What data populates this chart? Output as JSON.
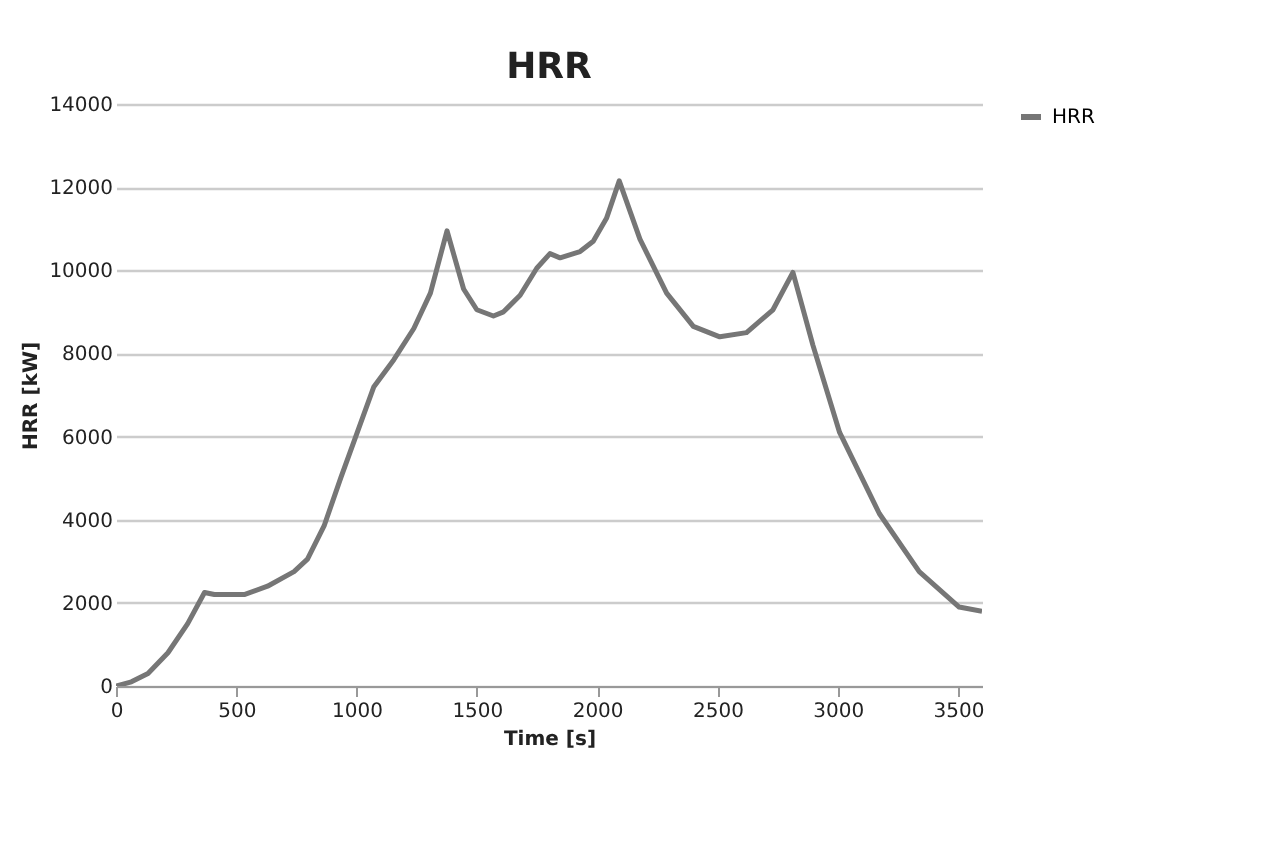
{
  "chart_data": {
    "type": "line",
    "title": "HRR",
    "xlabel": "Time [s]",
    "ylabel": "HRR [kW]",
    "x": [
      0,
      64,
      133,
      216,
      298,
      368,
      409,
      533,
      630,
      740,
      796,
      865,
      934,
      1003,
      1072,
      1155,
      1238,
      1307,
      1376,
      1445,
      1500,
      1569,
      1611,
      1680,
      1749,
      1804,
      1846,
      1929,
      1984,
      2039,
      2092,
      2178,
      2289,
      2400,
      2510,
      2621,
      2731,
      2814,
      2897,
      3008,
      3173,
      3339,
      3505,
      3600
    ],
    "series": [
      {
        "name": "HRR",
        "color": "#767676",
        "values": [
          0,
          100,
          300,
          800,
          1500,
          2250,
          2200,
          2200,
          2400,
          2750,
          3050,
          3850,
          5000,
          6100,
          7200,
          7850,
          8600,
          9450,
          10950,
          9550,
          9050,
          8900,
          9000,
          9400,
          10050,
          10400,
          10300,
          10450,
          10700,
          11250,
          12150,
          10750,
          9450,
          8650,
          8400,
          8500,
          9050,
          9950,
          8200,
          6100,
          4150,
          2750,
          1900,
          1800
        ]
      }
    ],
    "xlim": [
      0,
      3600
    ],
    "xticks": [
      0,
      500,
      1000,
      1500,
      2000,
      2500,
      3000,
      3500
    ],
    "ylim": [
      0,
      14000
    ],
    "yticks": [
      0,
      2000,
      4000,
      6000,
      8000,
      10000,
      12000,
      14000
    ],
    "grid": "y",
    "legend": "right",
    "marker": "none",
    "line_style": "solid"
  }
}
